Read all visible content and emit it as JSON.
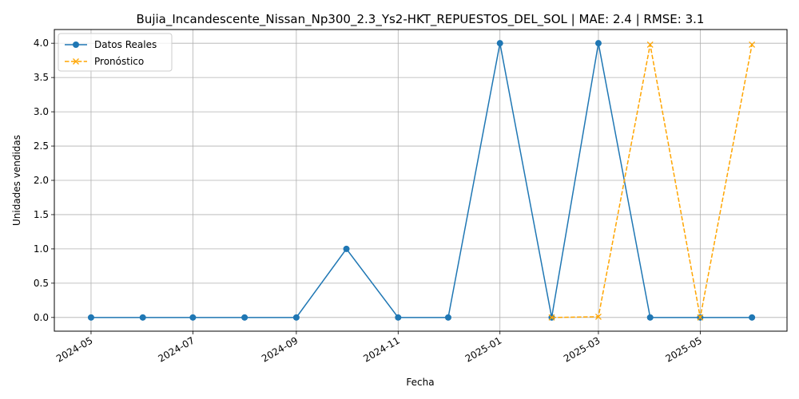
{
  "chart_data": {
    "type": "line",
    "title": "Bujia_Incandescente_Nissan_Np300_2.3_Ys2-HKT_REPUESTOS_DEL_SOL | MAE: 2.4 | RMSE: 3.1",
    "xlabel": "Fecha",
    "ylabel": "Unidades vendidas",
    "x_tick_labels": [
      "2024-05",
      "2024-07",
      "2024-09",
      "2024-11",
      "2025-01",
      "2025-03",
      "2025-05"
    ],
    "x_ticks": [
      "2024-05-01",
      "2024-07-01",
      "2024-09-01",
      "2024-11-01",
      "2025-01-01",
      "2025-03-01",
      "2025-05-01"
    ],
    "xlim": [
      "2024-04-09",
      "2025-06-22"
    ],
    "y_tick_labels": [
      "0.0",
      "0.5",
      "1.0",
      "1.5",
      "2.0",
      "2.5",
      "3.0",
      "3.5",
      "4.0"
    ],
    "y_ticks": [
      0,
      0.5,
      1,
      1.5,
      2,
      2.5,
      3,
      3.5,
      4
    ],
    "ylim": [
      -0.2,
      4.2
    ],
    "grid": true,
    "legend_position": "top-left",
    "series": [
      {
        "name": "Datos Reales",
        "color": "#1f77b4",
        "marker": "circle",
        "line_style": "solid",
        "x": [
          "2024-05-01",
          "2024-06-01",
          "2024-07-01",
          "2024-08-01",
          "2024-09-01",
          "2024-10-01",
          "2024-11-01",
          "2024-12-01",
          "2025-01-01",
          "2025-02-01",
          "2025-03-01",
          "2025-04-01",
          "2025-05-01",
          "2025-06-01"
        ],
        "y": [
          0,
          0,
          0,
          0,
          0,
          1,
          0,
          0,
          4,
          0,
          4,
          0,
          0,
          0
        ]
      },
      {
        "name": "Pronóstico",
        "color": "#ffa500",
        "marker": "x",
        "line_style": "dashed",
        "x": [
          "2025-02-01",
          "2025-03-01",
          "2025-04-01",
          "2025-05-01",
          "2025-06-01"
        ],
        "y": [
          0,
          0.01,
          3.98,
          0,
          3.98
        ]
      }
    ]
  }
}
